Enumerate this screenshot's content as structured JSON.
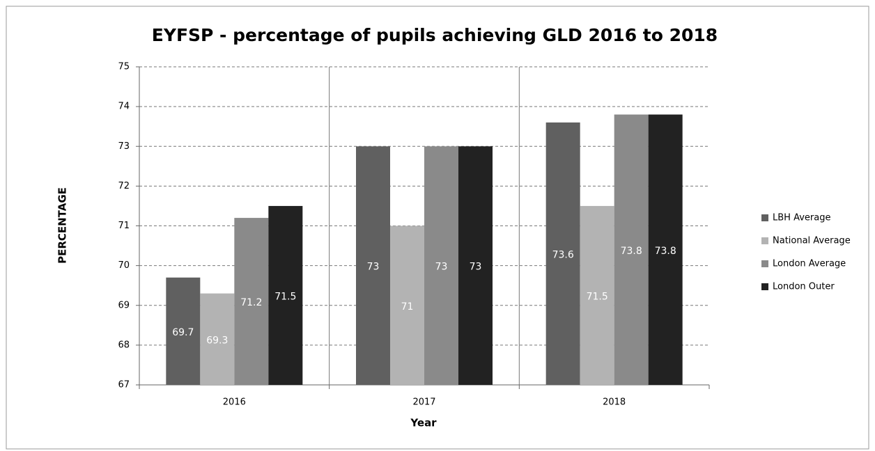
{
  "chart_data": {
    "type": "bar",
    "title": "EYFSP - percentage of pupils achieving GLD 2016 to 2018",
    "x_label": "Year",
    "y_label": "PERCENTAGE",
    "categories": [
      "2016",
      "2017",
      "2018"
    ],
    "series": [
      {
        "name": "LBH Average",
        "color": "#606060",
        "values": [
          69.7,
          73,
          73.6
        ]
      },
      {
        "name": "National Average",
        "color": "#b3b3b3",
        "values": [
          69.3,
          71,
          71.5
        ]
      },
      {
        "name": "London Average",
        "color": "#8a8a8a",
        "values": [
          71.2,
          73,
          73.8
        ]
      },
      {
        "name": "London Outer",
        "color": "#222222",
        "values": [
          71.5,
          73,
          73.8
        ]
      }
    ],
    "ylim": [
      67,
      75
    ],
    "yticks": [
      67,
      68,
      69,
      70,
      71,
      72,
      73,
      74,
      75
    ],
    "grid": true,
    "legend": "right"
  }
}
